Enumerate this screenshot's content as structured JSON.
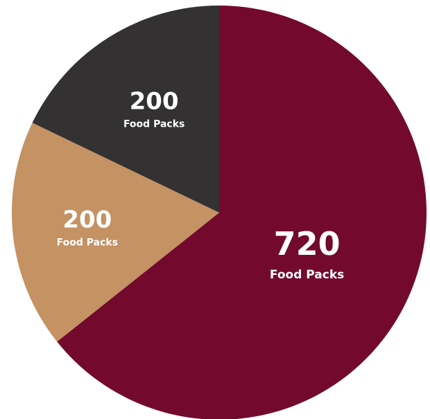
{
  "chart_data": {
    "type": "pie",
    "title": "",
    "slices": [
      {
        "value": 720,
        "label": "720",
        "sublabel": "Food Packs",
        "color": "#730a2e"
      },
      {
        "value": 200,
        "label": "200",
        "sublabel": "Food Packs",
        "color": "#c49263"
      },
      {
        "value": 200,
        "label": "200",
        "sublabel": "Food Packs",
        "color": "#333132"
      }
    ],
    "start_angle_deg": 0,
    "direction": "clockwise",
    "legend": "none"
  }
}
